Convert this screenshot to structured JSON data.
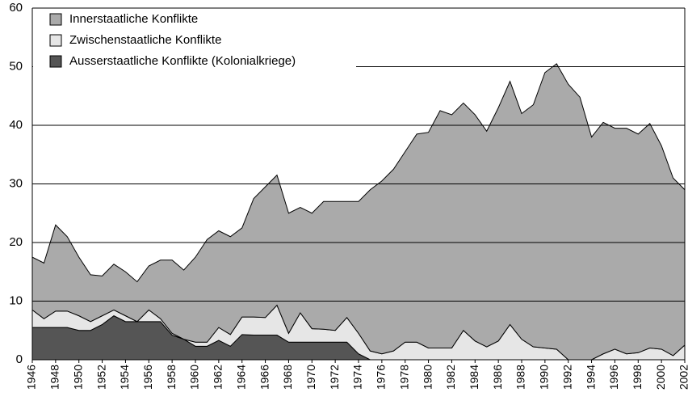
{
  "chart_data": {
    "type": "stacked_area",
    "x": [
      1946,
      1947,
      1948,
      1949,
      1950,
      1951,
      1952,
      1953,
      1954,
      1955,
      1956,
      1957,
      1958,
      1959,
      1960,
      1961,
      1962,
      1963,
      1964,
      1965,
      1966,
      1967,
      1968,
      1969,
      1970,
      1971,
      1972,
      1973,
      1974,
      1975,
      1976,
      1977,
      1978,
      1979,
      1980,
      1981,
      1982,
      1983,
      1984,
      1985,
      1986,
      1987,
      1988,
      1989,
      1990,
      1991,
      1992,
      1993,
      1994,
      1995,
      1996,
      1997,
      1998,
      1999,
      2000,
      2001,
      2002
    ],
    "series": [
      {
        "name": "Innerstaatliche Konflikte",
        "color": "#aaaaaa",
        "values": [
          9,
          9.5,
          14.7,
          12.7,
          10,
          8,
          6.8,
          7.8,
          7.5,
          6.8,
          7.5,
          10,
          12.5,
          11.8,
          14.5,
          17.5,
          16.5,
          16.7,
          15.2,
          20.2,
          22.3,
          22.2,
          20.5,
          18,
          19.7,
          21.8,
          22,
          19.8,
          22.5,
          27.5,
          29.5,
          31,
          32.5,
          35.5,
          36.8,
          40.5,
          39.8,
          38.8,
          38.6,
          36.8,
          39.8,
          41.5,
          38.5,
          41.3,
          47,
          48.7,
          47,
          44.8,
          38,
          39.5,
          37.7,
          38.5,
          37.3,
          38.3,
          34.7,
          30.3,
          26.5
        ]
      },
      {
        "name": "Zwischenstaatliche Konflikte",
        "color": "#e6e6e6",
        "values": [
          3,
          1.5,
          2.8,
          2.8,
          2.5,
          1.5,
          1.5,
          1,
          1,
          0,
          2,
          0.5,
          0.3,
          0,
          0.7,
          0.7,
          2.2,
          2,
          3,
          3.1,
          3,
          5.1,
          1.5,
          5,
          2.3,
          2.2,
          2,
          4.2,
          3.5,
          1.5,
          1,
          1.5,
          3,
          3,
          2,
          2,
          2,
          5,
          3.2,
          2.2,
          3.2,
          6,
          3.5,
          2.2,
          2,
          1.8,
          0,
          0,
          0,
          1,
          1.8,
          1,
          1.2,
          2,
          1.8,
          0.7,
          2.5
        ]
      },
      {
        "name": "Ausserstaatliche Konflikte (Kolonialkriege)",
        "color": "#555555",
        "values": [
          5.5,
          5.5,
          5.5,
          5.5,
          5,
          5,
          6,
          7.5,
          6.5,
          6.5,
          6.5,
          6.5,
          4.2,
          3.5,
          2.3,
          2.3,
          3.3,
          2.3,
          4.3,
          4.2,
          4.2,
          4.2,
          3,
          3,
          3,
          3,
          3,
          3,
          1,
          0,
          0,
          0,
          0,
          0,
          0,
          0,
          0,
          0,
          0,
          0,
          0,
          0,
          0,
          0,
          0,
          0,
          0,
          0,
          0,
          0,
          0,
          0,
          0,
          0,
          0,
          0,
          0
        ]
      }
    ],
    "xlim": [
      1946,
      2002
    ],
    "xticks": [
      1946,
      1948,
      1950,
      1952,
      1954,
      1956,
      1958,
      1960,
      1962,
      1964,
      1966,
      1968,
      1970,
      1972,
      1974,
      1976,
      1978,
      1980,
      1982,
      1984,
      1986,
      1988,
      1990,
      1992,
      1994,
      1996,
      1998,
      2000,
      2002
    ],
    "ylim": [
      0,
      60
    ],
    "yticks": [
      0,
      10,
      20,
      30,
      40,
      50,
      60
    ],
    "grid": true,
    "legend": "upper left"
  }
}
